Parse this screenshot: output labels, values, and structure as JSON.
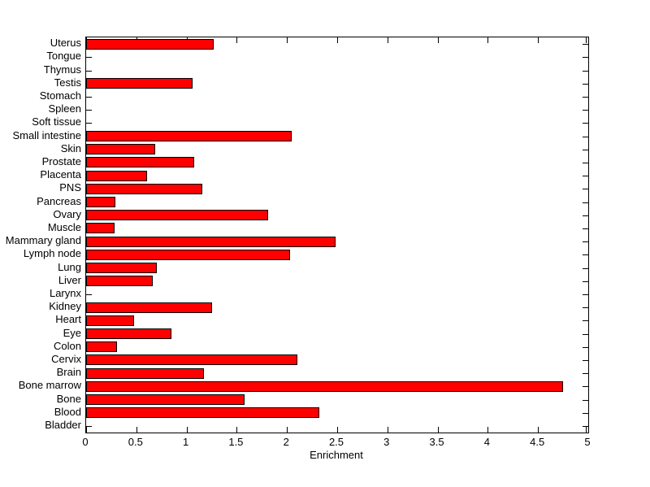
{
  "figure": {
    "background_color": "#ffffff",
    "axis_color": "#000000",
    "text_color": "#000000"
  },
  "chart_data": {
    "type": "bar",
    "orientation": "horizontal",
    "title": "",
    "xlabel": "Enrichment",
    "ylabel": "",
    "xlim": [
      0,
      5
    ],
    "xticks": [
      0,
      0.5,
      1,
      1.5,
      2,
      2.5,
      3,
      3.5,
      4,
      4.5,
      5
    ],
    "grid": false,
    "legend": null,
    "bar_color": "#ff0000",
    "bar_edge_color": "#000000",
    "categories_top_to_bottom": [
      "Uterus",
      "Tongue",
      "Thymus",
      "Testis",
      "Stomach",
      "Spleen",
      "Soft tissue",
      "Small intestine",
      "Skin",
      "Prostate",
      "Placenta",
      "PNS",
      "Pancreas",
      "Ovary",
      "Muscle",
      "Mammary gland",
      "Lymph node",
      "Lung",
      "Liver",
      "Larynx",
      "Kidney",
      "Heart",
      "Eye",
      "Colon",
      "Cervix",
      "Brain",
      "Bone marrow",
      "Bone",
      "Blood",
      "Bladder"
    ],
    "values_top_to_bottom": [
      1.27,
      0,
      0,
      1.06,
      0,
      0,
      0,
      2.05,
      0.69,
      1.08,
      0.61,
      1.16,
      0.29,
      1.81,
      0.28,
      2.48,
      2.03,
      0.7,
      0.66,
      0,
      1.25,
      0.48,
      0.85,
      0.31,
      2.1,
      1.17,
      4.75,
      1.58,
      2.32,
      0
    ]
  }
}
